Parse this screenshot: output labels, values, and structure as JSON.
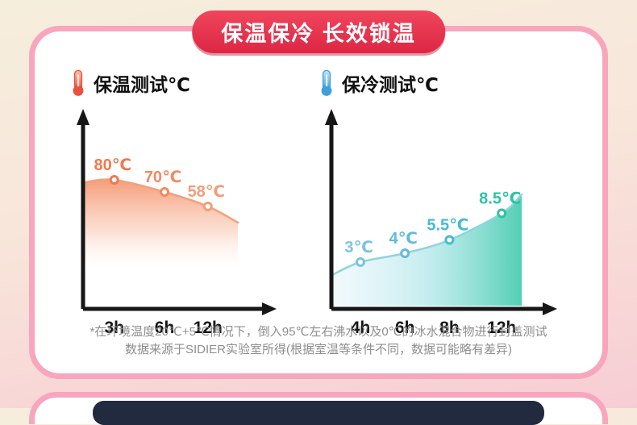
{
  "header": {
    "title": "保温保冷 长效锁温",
    "badge_color": "#e7384e"
  },
  "chart_data": [
    {
      "type": "area",
      "title": "保温测试℃",
      "icon": "thermometer-hot-icon",
      "x": [
        "3h",
        "6h",
        "12h"
      ],
      "values": [
        80,
        70,
        58
      ],
      "point_labels": [
        "80℃",
        "70℃",
        "58℃"
      ],
      "label_colors": [
        "#ef7a50",
        "#f18a62",
        "#f29d79"
      ],
      "accent": "#f08a62",
      "ylim": [
        0,
        110
      ],
      "grid": false,
      "legend": "none"
    },
    {
      "type": "area",
      "title": "保冷测试℃",
      "icon": "thermometer-cold-icon",
      "x": [
        "4h",
        "6h",
        "8h",
        "12h"
      ],
      "values": [
        3,
        4,
        5.5,
        8.5
      ],
      "point_labels": [
        "3℃",
        "4℃",
        "5.5℃",
        "8.5℃"
      ],
      "label_colors": [
        "#7ac3e2",
        "#62bade",
        "#45bcd2",
        "#2cc3a3"
      ],
      "accent": "#5ec2d8",
      "ylim": [
        0,
        18
      ],
      "grid": false,
      "legend": "none"
    }
  ],
  "footnote": {
    "line1": "*在环境温度20℃+5℃情况下，倒入95℃左右沸水以及0℃的冰水混合物进行封盖测试",
    "line2": "数据来源于SIDIER实验室所得(根据室温等条件不同，数据可能略有差异)"
  }
}
